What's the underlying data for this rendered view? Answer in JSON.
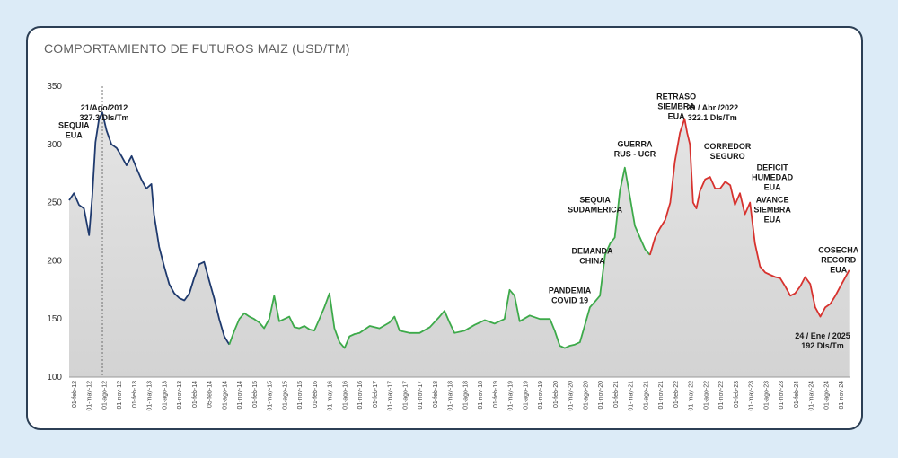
{
  "chart_data": {
    "type": "line",
    "title": "COMPORTAMIENTO DE FUTUROS MAIZ (USD/TM)",
    "ylim": [
      100,
      350
    ],
    "yticks": [
      100,
      150,
      200,
      250,
      300,
      350
    ],
    "x_tick_labels": [
      "01-feb-12",
      "01-may-12",
      "01-ago-12",
      "01-nov-12",
      "01-feb-13",
      "01-may-13",
      "01-ago-13",
      "01-nov-13",
      "01-feb-14",
      "05-feb-14",
      "01-ago-14",
      "01-nov-14",
      "01-feb-15",
      "01-may-15",
      "01-ago-15",
      "01-nov-15",
      "01-feb-16",
      "01-may-16",
      "01-ago-16",
      "01-nov-16",
      "01-feb-17",
      "01-may-17",
      "01-ago-17",
      "01-nov-17",
      "01-feb-18",
      "01-may-18",
      "01-ago-18",
      "01-nov-18",
      "01-feb-19",
      "01-may-19",
      "01-ago-19",
      "01-nov-19",
      "01-feb-20",
      "01-may-20",
      "01-ago-20",
      "01-nov-20",
      "01-feb-21",
      "01-may-21",
      "01-ago-21",
      "01-nov-21",
      "01-feb-22",
      "01-may-22",
      "01-ago-22",
      "01-nov-22",
      "01-feb-23",
      "01-may-23",
      "01-ago-23",
      "01-nov-23",
      "01-feb-24",
      "01-may-24",
      "01-ago-24",
      "01-nov-24"
    ],
    "grid": false,
    "series": [
      {
        "color": "#1f3a6e",
        "points": [
          [
            "2012-02-01",
            252
          ],
          [
            "2012-03-01",
            258
          ],
          [
            "2012-04-01",
            248
          ],
          [
            "2012-05-01",
            245
          ],
          [
            "2012-06-01",
            222
          ],
          [
            "2012-06-20",
            255
          ],
          [
            "2012-07-10",
            302
          ],
          [
            "2012-08-01",
            322
          ],
          [
            "2012-08-21",
            327.3
          ],
          [
            "2012-09-15",
            312
          ],
          [
            "2012-10-15",
            300
          ],
          [
            "2012-11-15",
            297
          ],
          [
            "2012-12-15",
            290
          ],
          [
            "2013-01-15",
            282
          ],
          [
            "2013-02-15",
            290
          ],
          [
            "2013-03-15",
            280
          ],
          [
            "2013-04-15",
            270
          ],
          [
            "2013-05-15",
            262
          ],
          [
            "2013-06-15",
            266
          ],
          [
            "2013-07-01",
            240
          ],
          [
            "2013-08-01",
            212
          ],
          [
            "2013-09-01",
            195
          ],
          [
            "2013-10-01",
            180
          ],
          [
            "2013-11-01",
            172
          ],
          [
            "2013-12-01",
            168
          ],
          [
            "2014-01-01",
            166
          ],
          [
            "2014-02-01",
            172
          ],
          [
            "2014-03-01",
            185
          ],
          [
            "2014-04-01",
            197
          ],
          [
            "2014-05-01",
            199
          ],
          [
            "2014-06-01",
            183
          ],
          [
            "2014-07-01",
            168
          ],
          [
            "2014-08-01",
            150
          ],
          [
            "2014-09-01",
            135
          ],
          [
            "2014-10-01",
            128
          ]
        ]
      },
      {
        "color": "#3daa4a",
        "points": [
          [
            "2014-10-01",
            128
          ],
          [
            "2014-11-01",
            140
          ],
          [
            "2014-12-01",
            150
          ],
          [
            "2015-01-01",
            155
          ],
          [
            "2015-02-01",
            152
          ],
          [
            "2015-03-01",
            150
          ],
          [
            "2015-04-01",
            147
          ],
          [
            "2015-05-01",
            142
          ],
          [
            "2015-06-01",
            150
          ],
          [
            "2015-07-01",
            170
          ],
          [
            "2015-08-01",
            148
          ],
          [
            "2015-09-01",
            150
          ],
          [
            "2015-10-01",
            152
          ],
          [
            "2015-11-01",
            143
          ],
          [
            "2015-12-01",
            142
          ],
          [
            "2016-01-01",
            144
          ],
          [
            "2016-02-01",
            141
          ],
          [
            "2016-03-01",
            140
          ],
          [
            "2016-04-01",
            150
          ],
          [
            "2016-05-01",
            160
          ],
          [
            "2016-06-01",
            172
          ],
          [
            "2016-07-01",
            142
          ],
          [
            "2016-08-01",
            130
          ],
          [
            "2016-09-01",
            125
          ],
          [
            "2016-10-01",
            135
          ],
          [
            "2016-11-01",
            137
          ],
          [
            "2016-12-01",
            138
          ],
          [
            "2017-02-01",
            144
          ],
          [
            "2017-04-01",
            142
          ],
          [
            "2017-06-01",
            147
          ],
          [
            "2017-07-01",
            152
          ],
          [
            "2017-08-01",
            140
          ],
          [
            "2017-10-01",
            138
          ],
          [
            "2017-12-01",
            138
          ],
          [
            "2018-02-01",
            143
          ],
          [
            "2018-04-01",
            152
          ],
          [
            "2018-05-01",
            157
          ],
          [
            "2018-06-01",
            147
          ],
          [
            "2018-07-01",
            138
          ],
          [
            "2018-09-01",
            140
          ],
          [
            "2018-11-01",
            145
          ],
          [
            "2019-01-01",
            149
          ],
          [
            "2019-03-01",
            146
          ],
          [
            "2019-05-01",
            150
          ],
          [
            "2019-06-01",
            175
          ],
          [
            "2019-07-01",
            170
          ],
          [
            "2019-08-01",
            148
          ],
          [
            "2019-10-01",
            153
          ],
          [
            "2019-12-01",
            150
          ],
          [
            "2020-02-01",
            150
          ],
          [
            "2020-03-01",
            140
          ],
          [
            "2020-04-01",
            127
          ],
          [
            "2020-05-01",
            125
          ],
          [
            "2020-06-01",
            127
          ],
          [
            "2020-07-01",
            128
          ],
          [
            "2020-08-01",
            130
          ],
          [
            "2020-09-01",
            145
          ],
          [
            "2020-10-01",
            160
          ],
          [
            "2020-11-01",
            165
          ],
          [
            "2020-12-01",
            170
          ],
          [
            "2021-01-01",
            205
          ],
          [
            "2021-02-01",
            215
          ],
          [
            "2021-03-01",
            220
          ],
          [
            "2021-04-01",
            260
          ],
          [
            "2021-05-01",
            280
          ],
          [
            "2021-06-01",
            255
          ],
          [
            "2021-07-01",
            230
          ],
          [
            "2021-08-01",
            220
          ],
          [
            "2021-09-01",
            210
          ],
          [
            "2021-10-01",
            205
          ]
        ]
      },
      {
        "color": "#d7322e",
        "points": [
          [
            "2021-10-01",
            205
          ],
          [
            "2021-11-01",
            220
          ],
          [
            "2021-12-01",
            228
          ],
          [
            "2022-01-01",
            235
          ],
          [
            "2022-02-01",
            250
          ],
          [
            "2022-03-01",
            285
          ],
          [
            "2022-04-01",
            310
          ],
          [
            "2022-04-29",
            322.1
          ],
          [
            "2022-05-15",
            310
          ],
          [
            "2022-06-01",
            300
          ],
          [
            "2022-06-20",
            250
          ],
          [
            "2022-07-10",
            245
          ],
          [
            "2022-08-01",
            260
          ],
          [
            "2022-09-01",
            270
          ],
          [
            "2022-10-01",
            272
          ],
          [
            "2022-11-01",
            262
          ],
          [
            "2022-12-01",
            262
          ],
          [
            "2023-01-01",
            268
          ],
          [
            "2023-02-01",
            265
          ],
          [
            "2023-03-01",
            248
          ],
          [
            "2023-04-01",
            258
          ],
          [
            "2023-05-01",
            240
          ],
          [
            "2023-06-01",
            250
          ],
          [
            "2023-07-01",
            215
          ],
          [
            "2023-08-01",
            195
          ],
          [
            "2023-09-01",
            190
          ],
          [
            "2023-10-01",
            188
          ],
          [
            "2023-11-01",
            186
          ],
          [
            "2023-12-01",
            185
          ],
          [
            "2024-01-01",
            178
          ],
          [
            "2024-02-01",
            170
          ],
          [
            "2024-03-01",
            172
          ],
          [
            "2024-04-01",
            178
          ],
          [
            "2024-05-01",
            186
          ],
          [
            "2024-06-01",
            180
          ],
          [
            "2024-07-01",
            160
          ],
          [
            "2024-08-01",
            152
          ],
          [
            "2024-09-01",
            160
          ],
          [
            "2024-10-01",
            163
          ],
          [
            "2024-11-01",
            170
          ],
          [
            "2024-12-01",
            178
          ],
          [
            "2025-01-24",
            192
          ]
        ]
      }
    ],
    "annotations": [
      {
        "lines": [
          "SEQUIA",
          "EUA"
        ],
        "at": [
          "2012-03-01",
          314
        ],
        "color": "#1a1a1a"
      },
      {
        "lines": [
          "21/Ago/2012",
          "327.3 Dls/Tm"
        ],
        "at": [
          "2012-09-01",
          329
        ],
        "color": "#d7322e",
        "weight": "normal"
      },
      {
        "lines": [
          "RETRASO",
          "SIEMBRA",
          "EUA"
        ],
        "at": [
          "2022-03-10",
          339
        ],
        "color": "#1a1a1a"
      },
      {
        "lines": [
          "29 / Abr /2022",
          "322.1 Dls/Tm"
        ],
        "at": [
          "2022-10-15",
          329
        ],
        "color": "#d7322e"
      },
      {
        "lines": [
          "GUERRA",
          "RUS - UCR"
        ],
        "at": [
          "2021-07-01",
          298
        ],
        "color": "#1a1a1a"
      },
      {
        "lines": [
          "CORREDOR",
          "SEGURO"
        ],
        "at": [
          "2023-01-15",
          296
        ],
        "color": "#1a1a1a"
      },
      {
        "lines": [
          "DEFICIT",
          "HUMEDAD",
          "EUA"
        ],
        "at": [
          "2023-10-15",
          278
        ],
        "color": "#1a1a1a"
      },
      {
        "lines": [
          "SEQUIA",
          "SUDAMERICA"
        ],
        "at": [
          "2020-11-01",
          250
        ],
        "color": "#1a1a1a"
      },
      {
        "lines": [
          "AVANCE",
          "SIEMBRA",
          "EUA"
        ],
        "at": [
          "2023-10-15",
          250
        ],
        "color": "#1a1a1a"
      },
      {
        "lines": [
          "DEMANDA",
          "CHINA"
        ],
        "at": [
          "2020-10-15",
          206
        ],
        "color": "#1a1a1a"
      },
      {
        "lines": [
          "COSECHA",
          "RECORD",
          "EUA"
        ],
        "at": [
          "2024-11-20",
          207
        ],
        "color": "#1a1a1a"
      },
      {
        "lines": [
          "PANDEMIA",
          "COVID 19"
        ],
        "at": [
          "2020-06-01",
          172
        ],
        "color": "#1a1a1a"
      },
      {
        "lines": [
          "24 / Ene  / 2025",
          "192 Dls/Tm"
        ],
        "at": [
          "2024-08-15",
          133
        ],
        "color": "#2f6fb0",
        "anchor": "middle"
      }
    ]
  }
}
